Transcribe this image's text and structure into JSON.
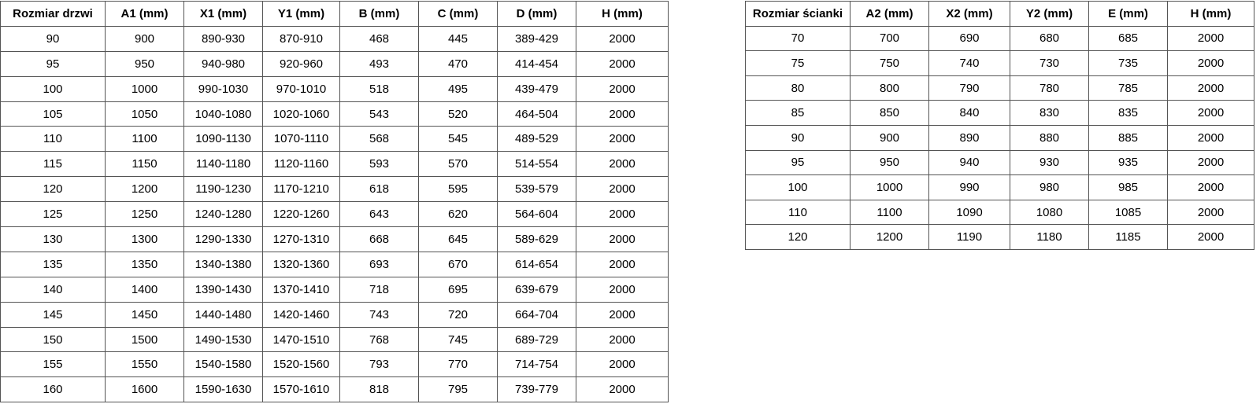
{
  "page": {
    "background_color": "#ffffff",
    "border_color": "#545454",
    "text_color": "#000000"
  },
  "tables": [
    {
      "name": "door-size-table",
      "headers": [
        "Rozmiar drzwi",
        "A1 (mm)",
        "X1 (mm)",
        "Y1 (mm)",
        "B (mm)",
        "C (mm)",
        "D (mm)",
        "H (mm)"
      ],
      "rows": [
        [
          "90",
          "900",
          "890-930",
          "870-910",
          "468",
          "445",
          "389-429",
          "2000"
        ],
        [
          "95",
          "950",
          "940-980",
          "920-960",
          "493",
          "470",
          "414-454",
          "2000"
        ],
        [
          "100",
          "1000",
          "990-1030",
          "970-1010",
          "518",
          "495",
          "439-479",
          "2000"
        ],
        [
          "105",
          "1050",
          "1040-1080",
          "1020-1060",
          "543",
          "520",
          "464-504",
          "2000"
        ],
        [
          "110",
          "1100",
          "1090-1130",
          "1070-1110",
          "568",
          "545",
          "489-529",
          "2000"
        ],
        [
          "115",
          "1150",
          "1140-1180",
          "1120-1160",
          "593",
          "570",
          "514-554",
          "2000"
        ],
        [
          "120",
          "1200",
          "1190-1230",
          "1170-1210",
          "618",
          "595",
          "539-579",
          "2000"
        ],
        [
          "125",
          "1250",
          "1240-1280",
          "1220-1260",
          "643",
          "620",
          "564-604",
          "2000"
        ],
        [
          "130",
          "1300",
          "1290-1330",
          "1270-1310",
          "668",
          "645",
          "589-629",
          "2000"
        ],
        [
          "135",
          "1350",
          "1340-1380",
          "1320-1360",
          "693",
          "670",
          "614-654",
          "2000"
        ],
        [
          "140",
          "1400",
          "1390-1430",
          "1370-1410",
          "718",
          "695",
          "639-679",
          "2000"
        ],
        [
          "145",
          "1450",
          "1440-1480",
          "1420-1460",
          "743",
          "720",
          "664-704",
          "2000"
        ],
        [
          "150",
          "1500",
          "1490-1530",
          "1470-1510",
          "768",
          "745",
          "689-729",
          "2000"
        ],
        [
          "155",
          "1550",
          "1540-1580",
          "1520-1560",
          "793",
          "770",
          "714-754",
          "2000"
        ],
        [
          "160",
          "1600",
          "1590-1630",
          "1570-1610",
          "818",
          "795",
          "739-779",
          "2000"
        ]
      ]
    },
    {
      "name": "wall-size-table",
      "headers": [
        "Rozmiar ścianki",
        "A2 (mm)",
        "X2 (mm)",
        "Y2 (mm)",
        "E (mm)",
        "H (mm)"
      ],
      "rows": [
        [
          "70",
          "700",
          "690",
          "680",
          "685",
          "2000"
        ],
        [
          "75",
          "750",
          "740",
          "730",
          "735",
          "2000"
        ],
        [
          "80",
          "800",
          "790",
          "780",
          "785",
          "2000"
        ],
        [
          "85",
          "850",
          "840",
          "830",
          "835",
          "2000"
        ],
        [
          "90",
          "900",
          "890",
          "880",
          "885",
          "2000"
        ],
        [
          "95",
          "950",
          "940",
          "930",
          "935",
          "2000"
        ],
        [
          "100",
          "1000",
          "990",
          "980",
          "985",
          "2000"
        ],
        [
          "110",
          "1100",
          "1090",
          "1080",
          "1085",
          "2000"
        ],
        [
          "120",
          "1200",
          "1190",
          "1180",
          "1185",
          "2000"
        ]
      ]
    }
  ]
}
